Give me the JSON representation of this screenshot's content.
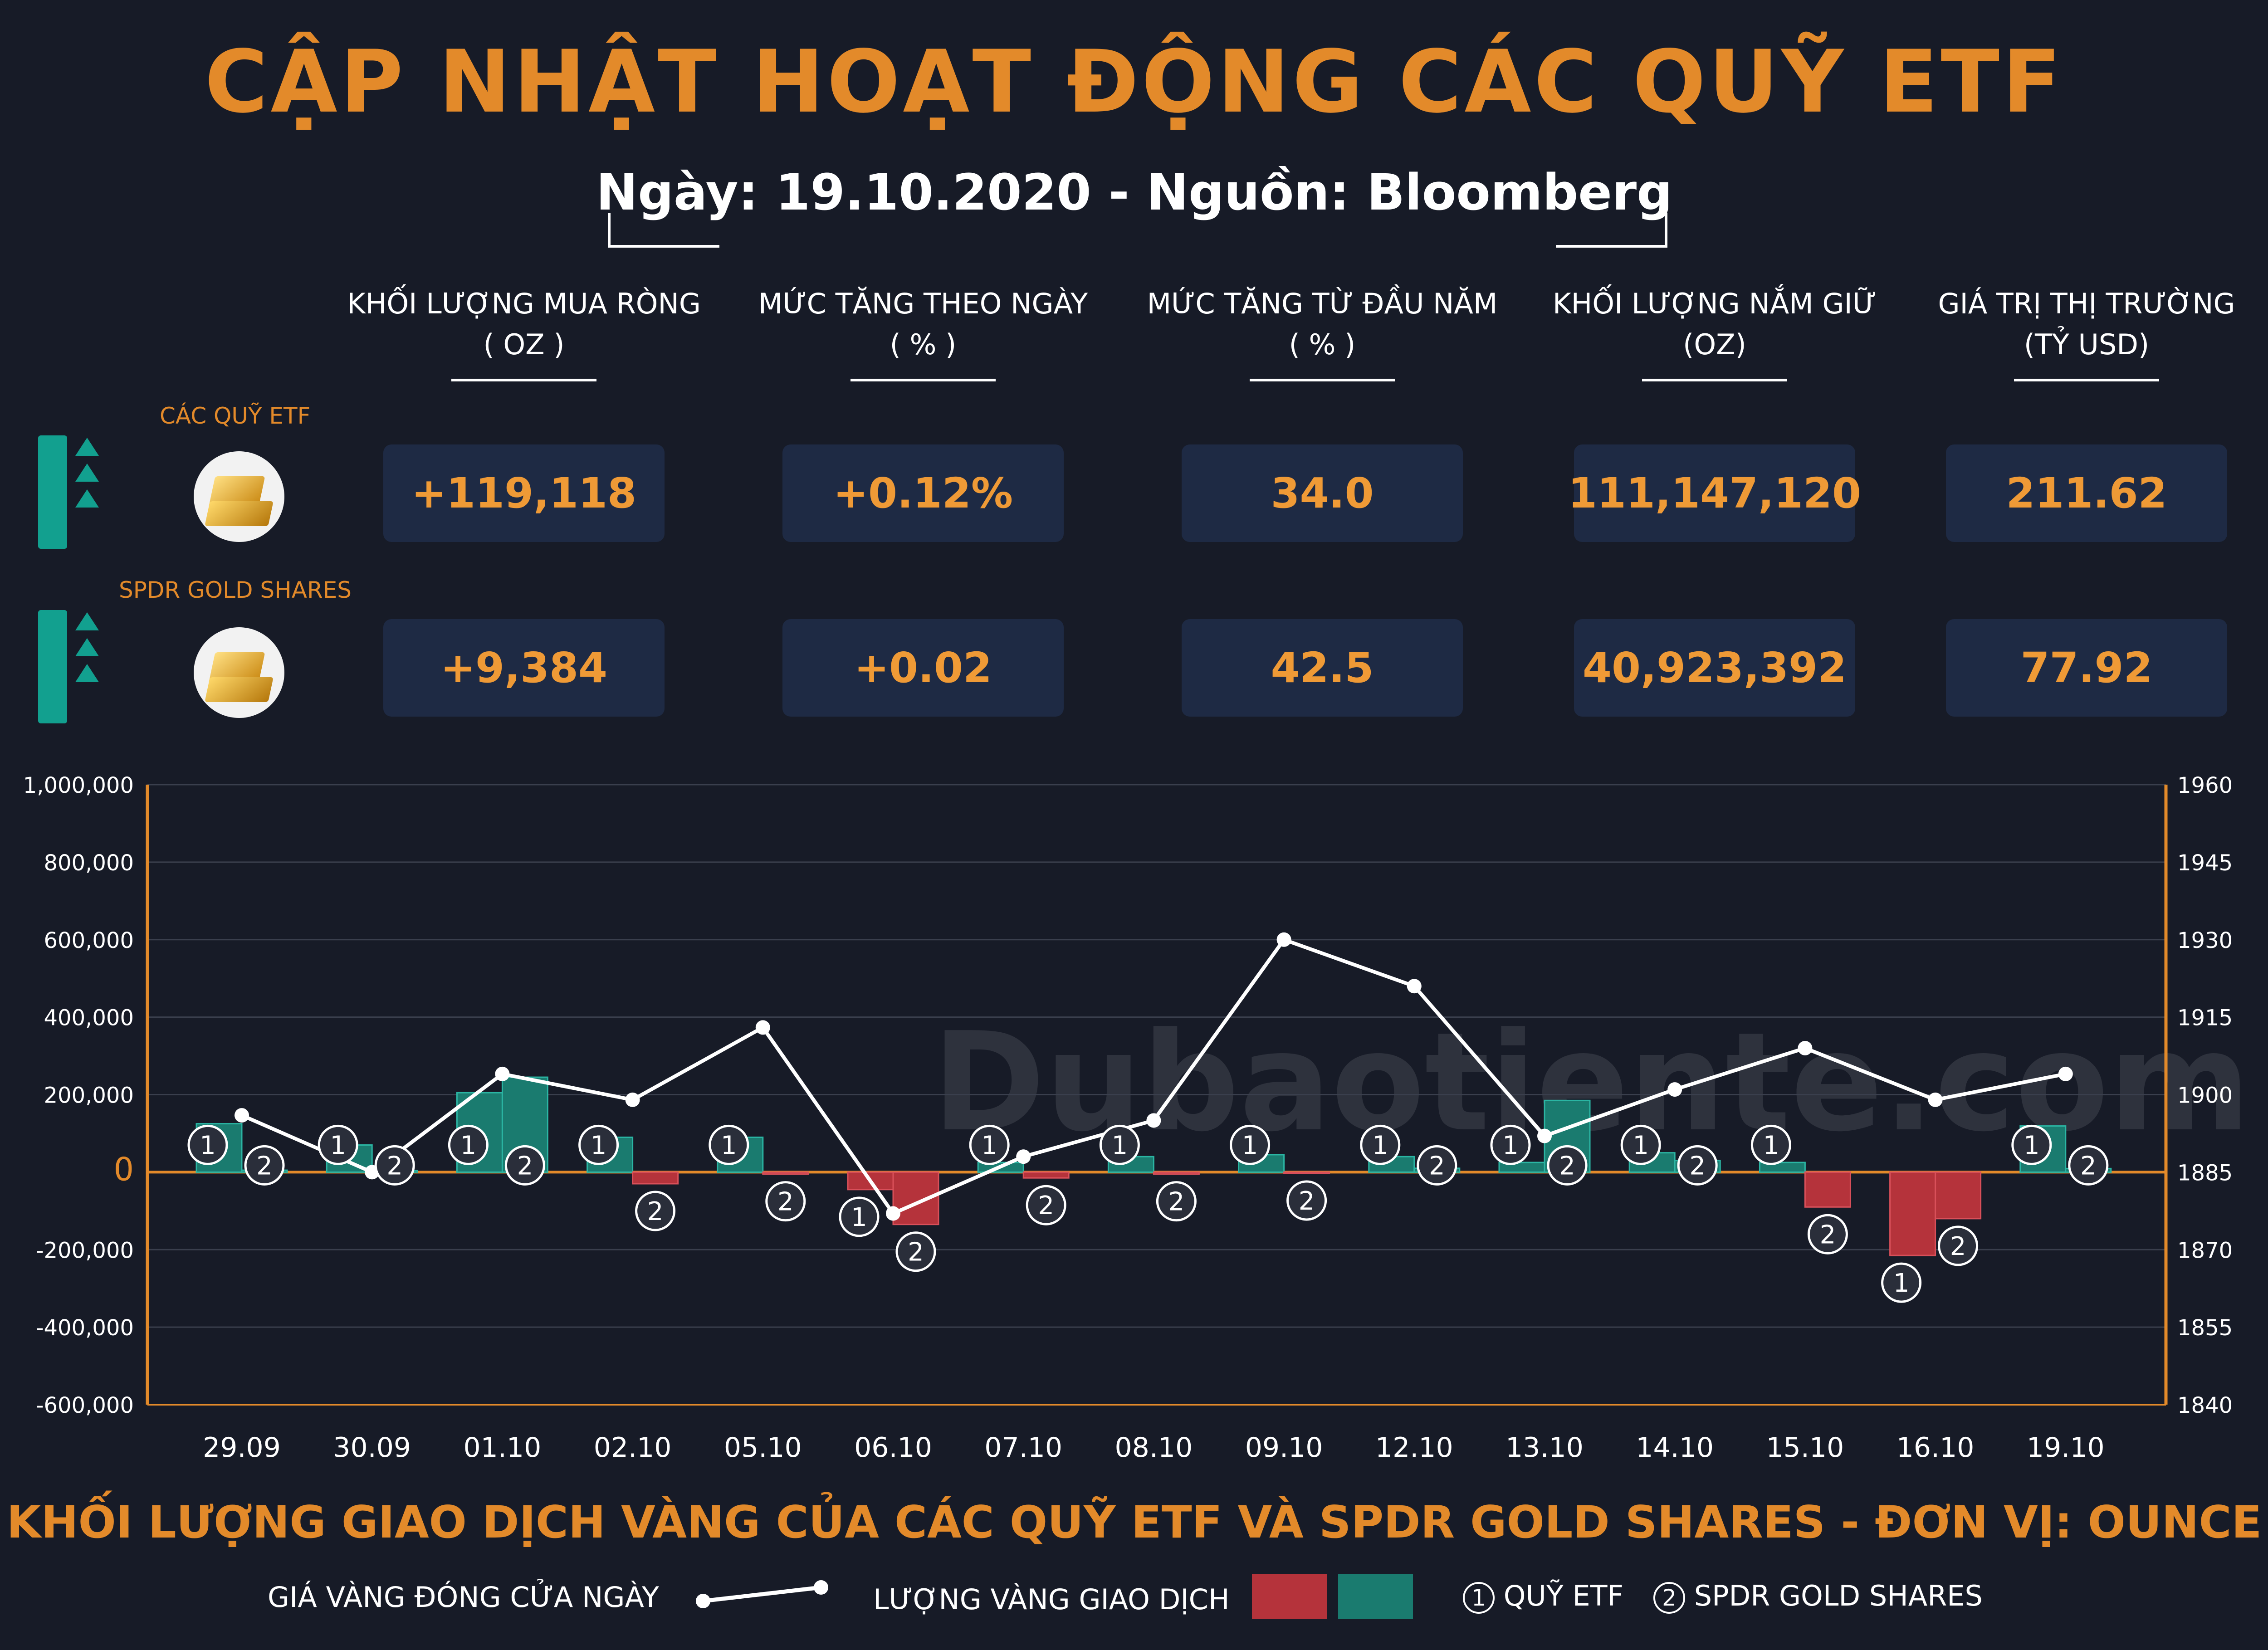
{
  "header": {
    "title": "CẬP NHẬT HOẠT ĐỘNG CÁC QUỸ ETF",
    "subtitle": "Ngày: 19.10.2020 - Nguồn: Bloomberg"
  },
  "summary": {
    "columns": [
      {
        "label": "KHỐI LƯỢNG MUA RÒNG",
        "unit": "( OZ )"
      },
      {
        "label": "MỨC TĂNG THEO NGÀY",
        "unit": "( % )"
      },
      {
        "label": "MỨC TĂNG TỪ ĐẦU NĂM",
        "unit": "( % )"
      },
      {
        "label": "KHỐI LƯỢNG NẮM GIỮ",
        "unit": "(OZ)"
      },
      {
        "label": "GIÁ TRỊ THỊ TRƯỜNG",
        "unit": "(TỶ USD)"
      }
    ],
    "rows": [
      {
        "label": "CÁC QUỸ ETF",
        "values": [
          "+119,118",
          "+0.12%",
          "34.0",
          "111,147,120",
          "211.62"
        ]
      },
      {
        "label": "SPDR GOLD SHARES",
        "values": [
          "+9,384",
          "+0.02",
          "42.5",
          "40,923,392",
          "77.92"
        ]
      }
    ]
  },
  "colors": {
    "accent": "#e38a2a",
    "teal": "#1a7b6f",
    "red": "#b5333b",
    "card": "#1e2a44",
    "background": "#171b27"
  },
  "chart_data": {
    "type": "bar",
    "title": "KHỐI LƯỢNG GIAO DỊCH VÀNG CỦA CÁC QUỸ ETF VÀ SPDR GOLD SHARES - ĐƠN VỊ: OUNCE",
    "categories": [
      "29.09",
      "30.09",
      "01.10",
      "02.10",
      "05.10",
      "06.10",
      "07.10",
      "08.10",
      "09.10",
      "12.10",
      "13.10",
      "14.10",
      "15.10",
      "16.10",
      "19.10"
    ],
    "series": [
      {
        "name": "QUỸ ETF",
        "marker": "1",
        "type": "bar",
        "values": [
          125000,
          70000,
          205000,
          90000,
          90000,
          -45000,
          25000,
          40000,
          45000,
          40000,
          25000,
          50000,
          25000,
          -215000,
          119118
        ]
      },
      {
        "name": "SPDR GOLD SHARES",
        "marker": "2",
        "type": "bar",
        "values": [
          5000,
          4000,
          245000,
          -30000,
          -5000,
          -135000,
          -15000,
          -5000,
          -3000,
          10000,
          185000,
          30000,
          -90000,
          -120000,
          9384
        ]
      },
      {
        "name": "GIÁ VÀNG ĐÓNG CỬA NGÀY",
        "type": "line",
        "axis": "right",
        "values": [
          1896,
          1885,
          1904,
          1899,
          1913,
          1877,
          1888,
          1895,
          1930,
          1921,
          1892,
          1901,
          1909,
          1899,
          1904
        ]
      }
    ],
    "ylim": [
      -600000,
      1000000
    ],
    "yticks": [
      "-600,000",
      "-400,000",
      "-200,000",
      "0",
      "200,000",
      "400,000",
      "600,000",
      "800,000",
      "1,000,000"
    ],
    "y2lim": [
      1840,
      1960
    ],
    "y2ticks": [
      "1840",
      "1855",
      "1870",
      "1885",
      "1900",
      "1915",
      "1930",
      "1945",
      "1960"
    ],
    "grid": true
  },
  "legend": {
    "line_label": "GIÁ VÀNG ĐÓNG CỬA NGÀY",
    "bars_label": "LƯỢNG VÀNG GIAO DỊCH",
    "marker1": "1",
    "marker1_label": "QUỸ ETF",
    "marker2": "2",
    "marker2_label": "SPDR GOLD SHARES"
  },
  "watermark": "Dubaotiente.com"
}
